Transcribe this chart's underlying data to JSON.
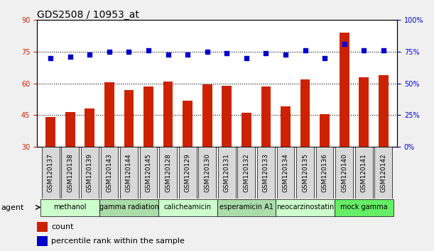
{
  "title": "GDS2508 / 10953_at",
  "samples": [
    "GSM120137",
    "GSM120138",
    "GSM120139",
    "GSM120143",
    "GSM120144",
    "GSM120145",
    "GSM120128",
    "GSM120129",
    "GSM120130",
    "GSM120131",
    "GSM120132",
    "GSM120133",
    "GSM120134",
    "GSM120135",
    "GSM120136",
    "GSM120140",
    "GSM120141",
    "GSM120142"
  ],
  "counts": [
    44,
    46.5,
    48,
    60.5,
    57,
    58.5,
    61,
    52,
    59.5,
    59,
    46,
    58.5,
    49,
    62,
    45.5,
    84,
    63,
    64
  ],
  "percentiles": [
    70,
    71,
    73,
    75,
    75,
    76,
    73,
    73,
    75,
    74,
    70,
    74,
    73,
    76,
    70,
    81,
    76,
    76
  ],
  "ylim_left": [
    30,
    90
  ],
  "ylim_right": [
    0,
    100
  ],
  "yticks_left": [
    30,
    45,
    60,
    75,
    90
  ],
  "yticks_right": [
    0,
    25,
    50,
    75,
    100
  ],
  "bar_color": "#cc2200",
  "dot_color": "#0000cc",
  "groups": [
    {
      "label": "methanol",
      "start": 0,
      "end": 3,
      "color": "#ccffcc"
    },
    {
      "label": "gamma radiation",
      "start": 3,
      "end": 6,
      "color": "#aaddaa"
    },
    {
      "label": "calicheamicin",
      "start": 6,
      "end": 9,
      "color": "#ccffcc"
    },
    {
      "label": "esperamicin A1",
      "start": 9,
      "end": 12,
      "color": "#aaddaa"
    },
    {
      "label": "neocarzinostatin",
      "start": 12,
      "end": 15,
      "color": "#ccffcc"
    },
    {
      "label": "mock gamma",
      "start": 15,
      "end": 18,
      "color": "#66ee66"
    }
  ],
  "xlabel_agent": "agent",
  "legend_count_label": "count",
  "legend_percentile_label": "percentile rank within the sample",
  "grid_color": "black",
  "bg_color": "#f0f0f0",
  "plot_bg": "white",
  "title_fontsize": 10,
  "tick_fontsize": 7,
  "group_fontsize": 7,
  "legend_fontsize": 8,
  "label_fontsize": 6.5
}
